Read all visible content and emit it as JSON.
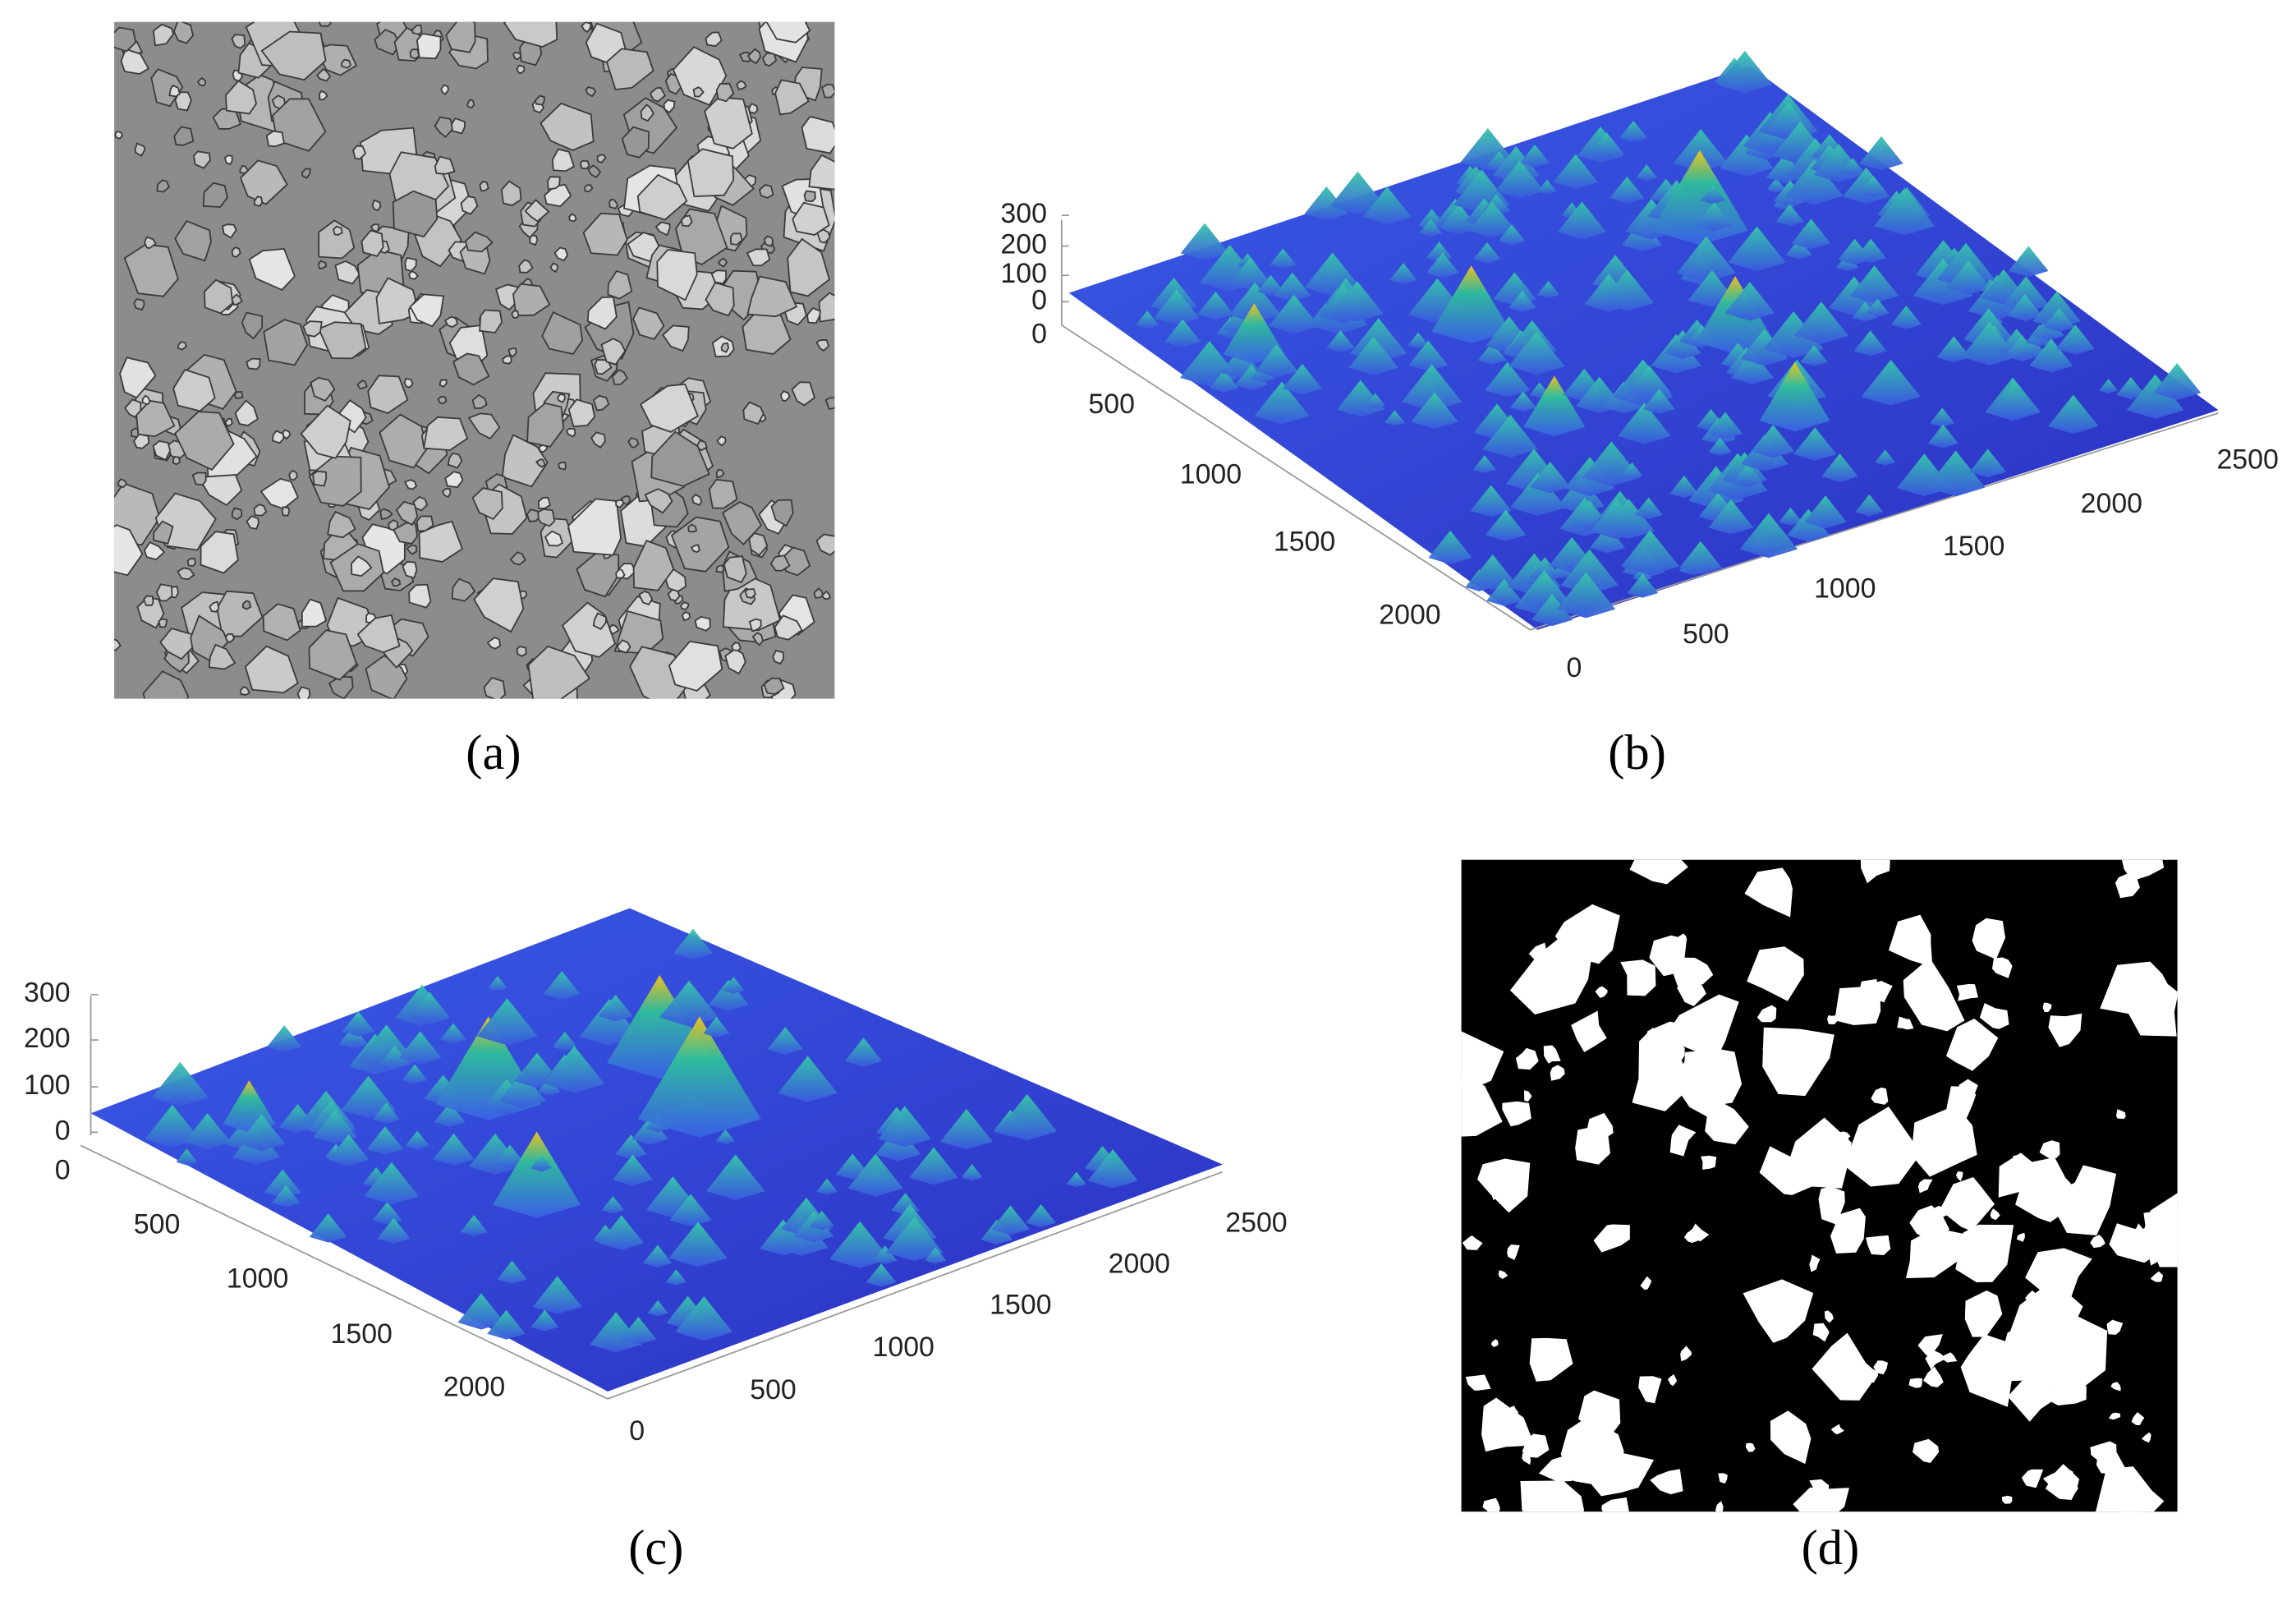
{
  "panels": [
    {
      "caption": "(a)"
    },
    {
      "caption": "(b)",
      "z_ticks": [
        300,
        200,
        100,
        0
      ],
      "y_ticks": [
        0,
        500,
        1000,
        1500,
        2000
      ],
      "x_ticks": [
        0,
        500,
        1000,
        1500,
        2000,
        2500
      ]
    },
    {
      "caption": "(c)",
      "z_ticks": [
        300,
        200,
        100,
        0
      ],
      "y_ticks": [
        0,
        500,
        1000,
        1500,
        2000
      ],
      "x_ticks": [
        0,
        500,
        1000,
        1500,
        2000,
        2500
      ]
    },
    {
      "caption": "(d)"
    }
  ]
}
